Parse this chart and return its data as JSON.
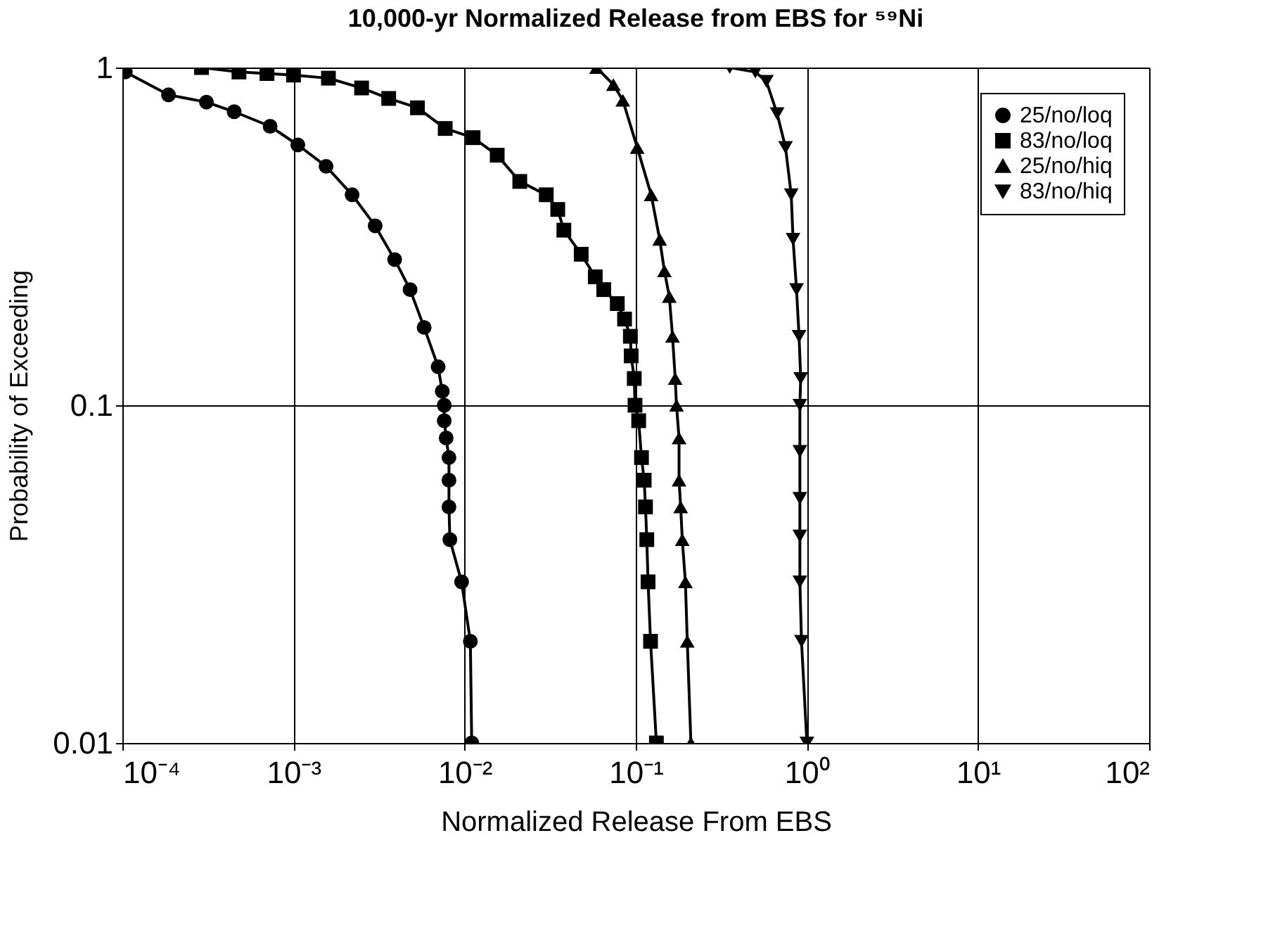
{
  "chart_data": {
    "type": "line",
    "title": "10,000-yr Normalized Release from EBS for ⁵⁹Ni",
    "xlabel": "Normalized Release From EBS",
    "ylabel": "Probability of Exceeding",
    "log": "xy",
    "grid": true,
    "legend": "top right",
    "xlim": [
      0.0001,
      100
    ],
    "ylim": [
      0.01,
      1
    ],
    "xticks": [
      {
        "value": 0.0001,
        "label": "10⁻⁴"
      },
      {
        "value": 0.001,
        "label": "10⁻³"
      },
      {
        "value": 0.01,
        "label": "10⁻²"
      },
      {
        "value": 0.1,
        "label": "10⁻¹"
      },
      {
        "value": 1,
        "label": "10⁰"
      },
      {
        "value": 10,
        "label": "10¹"
      },
      {
        "value": 100,
        "label": "10²"
      }
    ],
    "yticks": [
      0.01,
      0.1,
      1
    ],
    "series": [
      {
        "name": "25/no/loq",
        "color": "#000000",
        "marker": "circle",
        "x": [
          0.000104,
          0.000186,
          0.00031,
          0.00045,
          0.00073,
          0.00106,
          0.00155,
          0.0022,
          0.003,
          0.0039,
          0.0048,
          0.0058,
          0.007,
          0.0074,
          0.0076,
          0.0076,
          0.0078,
          0.0081,
          0.0081,
          0.0081,
          0.0082,
          0.0096,
          0.0108,
          0.011
        ],
        "values": [
          0.97,
          0.83,
          0.79,
          0.74,
          0.67,
          0.59,
          0.51,
          0.42,
          0.34,
          0.27,
          0.22,
          0.17,
          0.13,
          0.11,
          0.1,
          0.09,
          0.08,
          0.07,
          0.06,
          0.05,
          0.04,
          0.03,
          0.02,
          0.01
        ]
      },
      {
        "name": "83/no/loq",
        "color": "#000000",
        "marker": "square",
        "x": [
          0.00029,
          0.00048,
          0.0007,
          0.001,
          0.0016,
          0.0025,
          0.0036,
          0.0053,
          0.0077,
          0.0112,
          0.0155,
          0.021,
          0.03,
          0.035,
          0.038,
          0.048,
          0.058,
          0.065,
          0.078,
          0.086,
          0.093,
          0.094,
          0.098,
          0.099,
          0.104,
          0.108,
          0.112,
          0.114,
          0.116,
          0.118,
          0.122,
          0.132
        ],
        "values": [
          1.0,
          0.97,
          0.96,
          0.95,
          0.93,
          0.87,
          0.81,
          0.76,
          0.66,
          0.62,
          0.55,
          0.46,
          0.42,
          0.38,
          0.33,
          0.28,
          0.24,
          0.22,
          0.2,
          0.18,
          0.16,
          0.14,
          0.12,
          0.1,
          0.09,
          0.07,
          0.06,
          0.05,
          0.04,
          0.03,
          0.02,
          0.01
        ]
      },
      {
        "name": "25/no/hiq",
        "color": "#000000",
        "marker": "triangle",
        "x": [
          0.059,
          0.074,
          0.084,
          0.102,
          0.123,
          0.138,
          0.147,
          0.157,
          0.164,
          0.17,
          0.173,
          0.179,
          0.179,
          0.183,
          0.187,
          0.195,
          0.2,
          0.21
        ],
        "values": [
          1.0,
          0.89,
          0.8,
          0.58,
          0.42,
          0.31,
          0.25,
          0.21,
          0.16,
          0.12,
          0.1,
          0.08,
          0.06,
          0.05,
          0.04,
          0.03,
          0.02,
          0.01
        ]
      },
      {
        "name": "83/no/hiq",
        "color": "#000000",
        "marker": "triangle-down",
        "x": [
          0.354,
          0.5,
          0.58,
          0.67,
          0.75,
          0.81,
          0.83,
          0.87,
          0.9,
          0.92,
          0.91,
          0.91,
          0.91,
          0.91,
          0.91,
          0.93,
          1.0
        ],
        "values": [
          1.0,
          0.97,
          0.91,
          0.73,
          0.58,
          0.42,
          0.31,
          0.22,
          0.16,
          0.12,
          0.1,
          0.073,
          0.053,
          0.041,
          0.03,
          0.02,
          0.01
        ]
      }
    ]
  }
}
